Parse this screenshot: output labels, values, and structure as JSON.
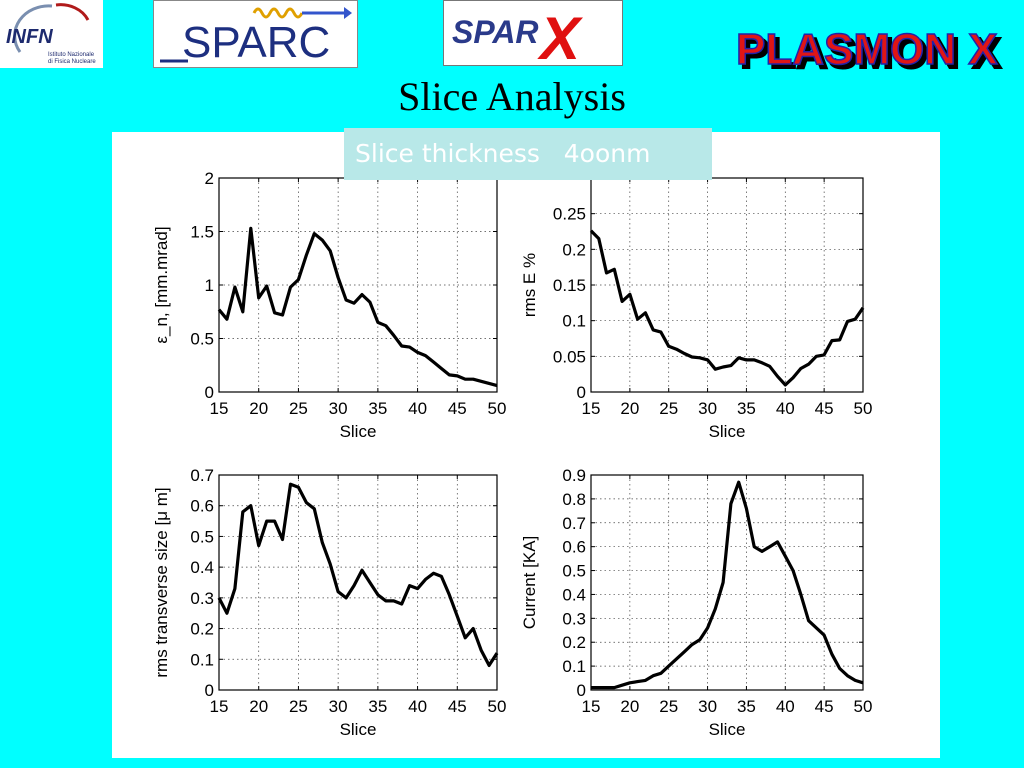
{
  "slide": {
    "title": "Slice Analysis",
    "thickness_label": "Slice thickness   4oonm"
  },
  "logos": {
    "infn_text": "INFN",
    "infn_subtitle_1": "Istituto Nazionale",
    "infn_subtitle_2": "di Fisica Nucleare",
    "sparc": "SPARC",
    "sparx": "SPAR",
    "sparx_x": "X",
    "plasmonx": "PLASMON X"
  },
  "colors": {
    "background": "#00ffff",
    "panel": "#ffffff",
    "line": "#000000",
    "label_box": "#b8e8e8"
  },
  "chart_data": [
    {
      "type": "line",
      "xlabel": "Slice",
      "ylabel": "ε_n, [mm.mrad]",
      "xlim": [
        15,
        50
      ],
      "ylim": [
        0,
        2
      ],
      "xticks": [
        15,
        20,
        25,
        30,
        35,
        40,
        45,
        50
      ],
      "xtick_labels": [
        "15",
        "20",
        "25",
        "30",
        "35",
        "40",
        "45",
        "50"
      ],
      "yticks": [
        0,
        0.5,
        1,
        1.5,
        2
      ],
      "ytick_labels": [
        "0",
        "0.5",
        "1",
        "1.5",
        "2"
      ],
      "grid": true,
      "x": [
        15,
        16,
        17,
        18,
        19,
        20,
        21,
        22,
        23,
        24,
        25,
        26,
        27,
        28,
        29,
        30,
        31,
        32,
        33,
        34,
        35,
        36,
        37,
        38,
        39,
        40,
        41,
        42,
        43,
        44,
        45,
        46,
        47,
        48,
        49,
        50
      ],
      "y": [
        0.77,
        0.68,
        0.98,
        0.75,
        1.53,
        0.88,
        0.99,
        0.74,
        0.72,
        0.98,
        1.05,
        1.28,
        1.48,
        1.42,
        1.32,
        1.07,
        0.86,
        0.83,
        0.91,
        0.84,
        0.65,
        0.62,
        0.53,
        0.43,
        0.42,
        0.37,
        0.34,
        0.28,
        0.22,
        0.16,
        0.15,
        0.12,
        0.12,
        0.1,
        0.08,
        0.06
      ]
    },
    {
      "type": "line",
      "xlabel": "Slice",
      "ylabel": "rms E %",
      "xlim": [
        15,
        50
      ],
      "ylim": [
        0,
        0.3
      ],
      "xticks": [
        15,
        20,
        25,
        30,
        35,
        40,
        45,
        50
      ],
      "xtick_labels": [
        "15",
        "20",
        "25",
        "30",
        "35",
        "40",
        "45",
        "50"
      ],
      "yticks": [
        0,
        0.05,
        0.1,
        0.15,
        0.2,
        0.25
      ],
      "ytick_labels": [
        "0",
        "0.05",
        "0.1",
        "0.15",
        "0.2",
        "0.25"
      ],
      "grid": true,
      "x": [
        15,
        16,
        17,
        18,
        19,
        20,
        21,
        22,
        23,
        24,
        25,
        26,
        27,
        28,
        29,
        30,
        31,
        32,
        33,
        34,
        35,
        36,
        37,
        38,
        39,
        40,
        41,
        42,
        43,
        44,
        45,
        46,
        47,
        48,
        49,
        50
      ],
      "y": [
        0.226,
        0.215,
        0.167,
        0.172,
        0.127,
        0.137,
        0.102,
        0.111,
        0.087,
        0.084,
        0.064,
        0.06,
        0.054,
        0.049,
        0.048,
        0.045,
        0.032,
        0.035,
        0.037,
        0.048,
        0.045,
        0.045,
        0.041,
        0.036,
        0.022,
        0.01,
        0.02,
        0.033,
        0.039,
        0.05,
        0.052,
        0.072,
        0.073,
        0.099,
        0.102,
        0.118
      ]
    },
    {
      "type": "line",
      "xlabel": "Slice",
      "ylabel": "rms transverse size [μ m]",
      "xlim": [
        15,
        50
      ],
      "ylim": [
        0,
        0.7
      ],
      "xticks": [
        15,
        20,
        25,
        30,
        35,
        40,
        45,
        50
      ],
      "xtick_labels": [
        "15",
        "20",
        "25",
        "30",
        "35",
        "40",
        "45",
        "50"
      ],
      "yticks": [
        0,
        0.1,
        0.2,
        0.3,
        0.4,
        0.5,
        0.6,
        0.7
      ],
      "ytick_labels": [
        "0",
        "0.1",
        "0.2",
        "0.3",
        "0.4",
        "0.5",
        "0.6",
        "0.7"
      ],
      "grid": true,
      "x": [
        15,
        16,
        17,
        18,
        19,
        20,
        21,
        22,
        23,
        24,
        25,
        26,
        27,
        28,
        29,
        30,
        31,
        32,
        33,
        34,
        35,
        36,
        37,
        38,
        39,
        40,
        41,
        42,
        43,
        44,
        45,
        46,
        47,
        48,
        49,
        50
      ],
      "y": [
        0.3,
        0.25,
        0.33,
        0.58,
        0.6,
        0.47,
        0.55,
        0.55,
        0.49,
        0.67,
        0.66,
        0.61,
        0.59,
        0.48,
        0.41,
        0.32,
        0.3,
        0.34,
        0.39,
        0.35,
        0.31,
        0.29,
        0.29,
        0.28,
        0.34,
        0.33,
        0.36,
        0.38,
        0.37,
        0.31,
        0.24,
        0.17,
        0.2,
        0.13,
        0.08,
        0.12
      ]
    },
    {
      "type": "line",
      "xlabel": "Slice",
      "ylabel": "Current [KA]",
      "xlim": [
        15,
        50
      ],
      "ylim": [
        0,
        0.9
      ],
      "xticks": [
        15,
        20,
        25,
        30,
        35,
        40,
        45,
        50
      ],
      "xtick_labels": [
        "15",
        "20",
        "25",
        "30",
        "35",
        "40",
        "45",
        "50"
      ],
      "yticks": [
        0,
        0.1,
        0.2,
        0.3,
        0.4,
        0.5,
        0.6,
        0.7,
        0.8,
        0.9
      ],
      "ytick_labels": [
        "0",
        "0.1",
        "0.2",
        "0.3",
        "0.4",
        "0.5",
        "0.6",
        "0.7",
        "0.8",
        "0.9"
      ],
      "grid": true,
      "x": [
        15,
        16,
        17,
        18,
        19,
        20,
        21,
        22,
        23,
        24,
        25,
        26,
        27,
        28,
        29,
        30,
        31,
        32,
        33,
        34,
        35,
        36,
        37,
        38,
        39,
        40,
        41,
        42,
        43,
        44,
        45,
        46,
        47,
        48,
        49,
        50
      ],
      "y": [
        0.01,
        0.01,
        0.01,
        0.01,
        0.02,
        0.03,
        0.035,
        0.04,
        0.06,
        0.07,
        0.1,
        0.13,
        0.16,
        0.19,
        0.21,
        0.26,
        0.34,
        0.45,
        0.78,
        0.87,
        0.76,
        0.6,
        0.58,
        0.6,
        0.62,
        0.56,
        0.5,
        0.4,
        0.29,
        0.26,
        0.23,
        0.15,
        0.09,
        0.06,
        0.04,
        0.03
      ]
    }
  ]
}
